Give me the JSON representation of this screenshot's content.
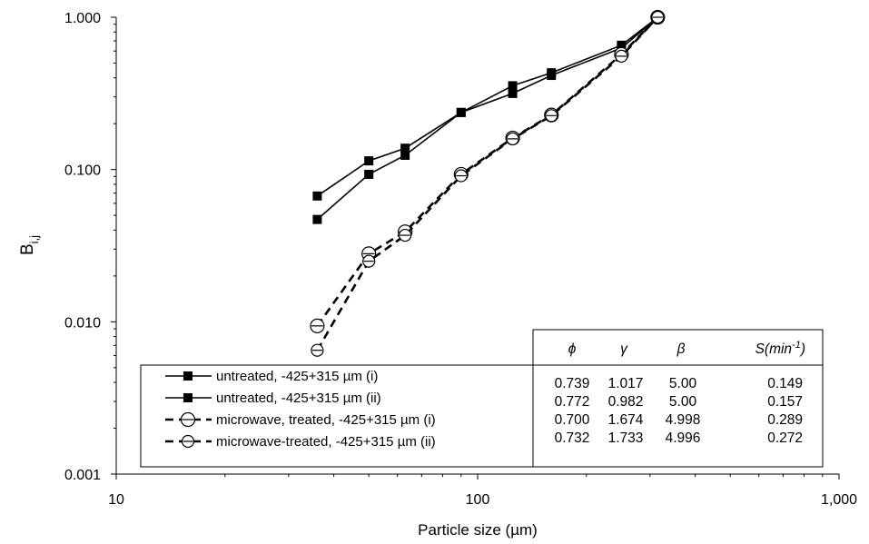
{
  "chart_data": {
    "type": "line",
    "xlabel": "Particle size (µm)",
    "ylabel": "B",
    "ylabel_subscript": "i,j",
    "xscale": "log",
    "yscale": "log",
    "xlim": [
      10,
      1000
    ],
    "ylim": [
      0.001,
      1
    ],
    "xticks": [
      10,
      100,
      1000
    ],
    "xtick_labels": [
      "10",
      "100",
      "1,000"
    ],
    "yticks": [
      0.001,
      0.01,
      0.1,
      1
    ],
    "ytick_labels": [
      "0.001",
      "0.010",
      "0.100",
      "1.000"
    ],
    "grid": false,
    "legend_position": "bottom-center",
    "series": [
      {
        "name": "untreated, -425+315 µm (i)",
        "style": "solid",
        "marker": "square-filled",
        "color": "#000000",
        "x": [
          36,
          50,
          63,
          90,
          125,
          160,
          250,
          315
        ],
        "y": [
          0.067,
          0.114,
          0.138,
          0.237,
          0.355,
          0.432,
          0.655,
          1.0
        ]
      },
      {
        "name": "untreated, -425+315 µm (ii)",
        "style": "solid",
        "marker": "square-filled",
        "color": "#000000",
        "x": [
          36,
          50,
          63,
          90,
          125,
          160,
          250,
          315
        ],
        "y": [
          0.047,
          0.093,
          0.124,
          0.237,
          0.316,
          0.415,
          0.628,
          1.0
        ]
      },
      {
        "name": "microwave, treated, -425+315 µm (i)",
        "style": "dashed",
        "marker": "circle-line",
        "color": "#000000",
        "x": [
          36,
          50,
          63,
          90,
          125,
          160,
          250,
          315
        ],
        "y": [
          0.0094,
          0.028,
          0.039,
          0.093,
          0.161,
          0.228,
          0.57,
          1.0
        ]
      },
      {
        "name": "microwave-treated, -425+315 µm (ii)",
        "style": "dashed",
        "marker": "circle-line-small",
        "color": "#000000",
        "x": [
          36,
          50,
          63,
          90,
          125,
          160,
          250,
          315
        ],
        "y": [
          0.0065,
          0.025,
          0.037,
          0.091,
          0.159,
          0.226,
          0.555,
          1.0
        ]
      }
    ],
    "parameter_table": {
      "headers": [
        "ϕ",
        "γ",
        "β",
        "S(min",
        "-1",
        ")"
      ],
      "rows": [
        [
          "0.739",
          "1.017",
          "5.00",
          "0.149"
        ],
        [
          "0.772",
          "0.982",
          "5.00",
          "0.157"
        ],
        [
          "0.700",
          "1.674",
          "4.998",
          "0.289"
        ],
        [
          "0.732",
          "1.733",
          "4.996",
          "0.272"
        ]
      ]
    }
  }
}
